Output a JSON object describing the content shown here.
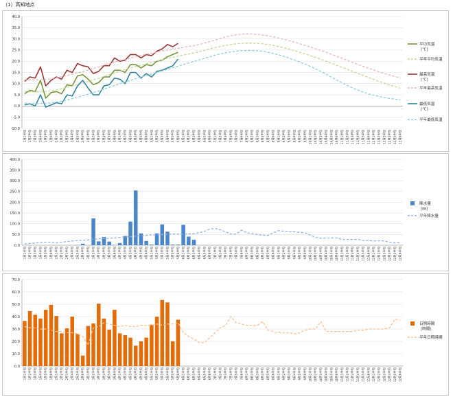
{
  "page": {
    "title": "（1）高知地点"
  },
  "x_labels": [
    "1月1半旬",
    "1月2半旬",
    "1月3半旬",
    "1月4半旬",
    "1月5半旬",
    "1月6半旬",
    "2月1半旬",
    "2月2半旬",
    "2月3半旬",
    "2月4半旬",
    "2月5半旬",
    "2月6半旬",
    "3月1半旬",
    "3月2半旬",
    "3月3半旬",
    "3月4半旬",
    "3月5半旬",
    "3月6半旬",
    "4月1半旬",
    "4月2半旬",
    "4月3半旬",
    "4月4半旬",
    "4月5半旬",
    "4月6半旬",
    "5月1半旬",
    "5月2半旬",
    "5月3半旬",
    "5月4半旬",
    "5月5半旬",
    "5月6半旬",
    "6月1半旬",
    "6月2半旬",
    "6月3半旬",
    "6月4半旬",
    "6月5半旬",
    "6月6半旬",
    "7月1半旬",
    "7月2半旬",
    "7月3半旬",
    "7月4半旬",
    "7月5半旬",
    "7月6半旬",
    "8月1半旬",
    "8月2半旬",
    "8月3半旬",
    "8月4半旬",
    "8月5半旬",
    "8月6半旬",
    "9月1半旬",
    "9月2半旬",
    "9月3半旬",
    "9月4半旬",
    "9月5半旬",
    "9月6半旬",
    "10月1半旬",
    "10月2半旬",
    "10月3半旬",
    "10月4半旬",
    "10月5半旬",
    "10月6半旬",
    "11月1半旬",
    "11月2半旬",
    "11月3半旬",
    "11月4半旬",
    "11月5半旬",
    "11月6半旬",
    "12月1半旬",
    "12月2半旬",
    "12月3半旬",
    "12月4半旬",
    "12月5半旬",
    "12月6半旬"
  ],
  "chart_data": [
    {
      "type": "line",
      "id": "temperature",
      "title": "",
      "xlabel": "",
      "ylabel": "",
      "ylim": [
        -10,
        40
      ],
      "ystep": 5,
      "grid": true,
      "legend_position": "right",
      "series": [
        {
          "name": "平均気温",
          "unit": "[℃]",
          "color": "#77933c",
          "dashed": false,
          "values": [
            5.5,
            7.0,
            6.5,
            11.5,
            3.5,
            6.0,
            6.5,
            5.5,
            9.5,
            9.0,
            13.5,
            14.0,
            12.0,
            9.5,
            10.5,
            13.0,
            13.0,
            16.0,
            16.0,
            15.0,
            18.5,
            18.5,
            17.0,
            18.5,
            18.0,
            20.0,
            20.5,
            22.0,
            23.0,
            24.0
          ]
        },
        {
          "name": "平年平均気温",
          "unit": "",
          "color": "#c3d69b",
          "dashed": true,
          "values": [
            6.5,
            6.4,
            6.3,
            6.4,
            6.6,
            6.9,
            7.3,
            7.8,
            8.3,
            8.9,
            9.6,
            10.3,
            11.0,
            11.7,
            12.4,
            13.2,
            14.0,
            14.8,
            15.6,
            16.3,
            17.0,
            17.7,
            18.3,
            18.9,
            19.5,
            20.1,
            20.7,
            21.3,
            21.8,
            22.3,
            22.8,
            23.2,
            23.7,
            24.3,
            24.9,
            25.5,
            26.1,
            26.6,
            27.1,
            27.5,
            27.8,
            28.0,
            28.1,
            28.1,
            28.0,
            27.8,
            27.5,
            27.1,
            26.6,
            26.0,
            25.4,
            24.7,
            24.0,
            23.3,
            22.5,
            21.7,
            20.9,
            20.0,
            19.1,
            18.2,
            17.3,
            16.4,
            15.5,
            14.6,
            13.7,
            12.8,
            11.9,
            11.0,
            10.2,
            9.4,
            8.7,
            8.0
          ]
        },
        {
          "name": "最高気温",
          "unit": "[℃]",
          "color": "#953735",
          "dashed": false,
          "values": [
            11.0,
            13.0,
            12.5,
            17.5,
            9.0,
            11.5,
            13.0,
            12.0,
            16.0,
            15.0,
            19.0,
            18.0,
            17.5,
            14.5,
            15.5,
            18.0,
            18.0,
            21.5,
            20.0,
            20.5,
            23.0,
            23.0,
            21.5,
            23.0,
            22.5,
            24.5,
            25.5,
            27.5,
            26.5,
            28.0
          ]
        },
        {
          "name": "平年最高気温",
          "unit": "",
          "color": "#e6b9b8",
          "dashed": true,
          "values": [
            11.8,
            11.7,
            11.6,
            11.7,
            11.9,
            12.2,
            12.6,
            13.1,
            13.6,
            14.2,
            14.8,
            15.4,
            16.1,
            16.8,
            17.5,
            18.2,
            18.9,
            19.6,
            20.3,
            20.9,
            21.5,
            22.1,
            22.6,
            23.1,
            23.6,
            24.1,
            24.6,
            25.0,
            25.4,
            25.8,
            26.2,
            26.6,
            27.0,
            27.5,
            28.1,
            28.8,
            29.5,
            30.2,
            30.9,
            31.4,
            31.8,
            32.1,
            32.2,
            32.2,
            32.0,
            31.7,
            31.4,
            30.9,
            30.4,
            29.8,
            29.2,
            28.5,
            27.8,
            27.1,
            26.4,
            25.6,
            24.8,
            24.0,
            23.1,
            22.2,
            21.3,
            20.4,
            19.5,
            18.6,
            17.7,
            16.9,
            16.1,
            15.3,
            14.5,
            13.8,
            13.2,
            12.6
          ]
        },
        {
          "name": "最低気温",
          "unit": "[℃]",
          "color": "#31859c",
          "dashed": false,
          "values": [
            0.5,
            1.0,
            0.0,
            5.0,
            -0.5,
            0.5,
            1.5,
            1.0,
            5.0,
            4.5,
            9.0,
            11.5,
            8.0,
            5.0,
            5.0,
            9.0,
            9.5,
            12.5,
            12.0,
            10.0,
            15.0,
            15.0,
            12.5,
            14.5,
            13.0,
            15.5,
            16.0,
            17.0,
            18.0,
            21.0
          ]
        },
        {
          "name": "平年最低気温",
          "unit": "",
          "color": "#93cddd",
          "dashed": true,
          "values": [
            1.3,
            1.2,
            1.1,
            1.1,
            1.2,
            1.5,
            1.8,
            2.2,
            2.7,
            3.3,
            3.9,
            4.6,
            5.3,
            6.0,
            6.8,
            7.6,
            8.4,
            9.2,
            10.0,
            10.7,
            11.5,
            12.2,
            12.9,
            13.6,
            14.3,
            15.0,
            15.7,
            16.4,
            17.1,
            17.8,
            18.5,
            19.2,
            19.9,
            20.6,
            21.3,
            22.0,
            22.7,
            23.3,
            23.8,
            24.2,
            24.5,
            24.7,
            24.8,
            24.8,
            24.7,
            24.4,
            24.0,
            23.5,
            22.9,
            22.2,
            21.4,
            20.6,
            19.7,
            18.8,
            17.7,
            16.6,
            15.4,
            14.2,
            12.9,
            11.6,
            10.4,
            9.2,
            8.1,
            7.1,
            6.2,
            5.4,
            4.8,
            4.3,
            3.8,
            3.4,
            3.1,
            2.8
          ]
        }
      ]
    },
    {
      "type": "bar",
      "id": "precipitation",
      "title": "",
      "xlabel": "",
      "ylabel": "",
      "ylim": [
        0,
        400
      ],
      "ystep": 50,
      "grid": true,
      "legend_position": "right",
      "series": [
        {
          "name": "降水量",
          "unit": "[㎜]",
          "color": "#4a86c8",
          "kind": "bar",
          "values": [
            0,
            0,
            0,
            0,
            0,
            0,
            0,
            0,
            0,
            0,
            1,
            7,
            0,
            125,
            18,
            38,
            17,
            1,
            10,
            43,
            110,
            255,
            55,
            20,
            3,
            55,
            97,
            63,
            3,
            3,
            95,
            40,
            25
          ]
        },
        {
          "name": "平年降水量",
          "unit": "",
          "color": "#8fb4e3",
          "kind": "dashed-line",
          "values": [
            6,
            8,
            10,
            13,
            14,
            14,
            12,
            14,
            17,
            20,
            22,
            23,
            25,
            28,
            30,
            31,
            32,
            34,
            36,
            38,
            40,
            42,
            44,
            46,
            48,
            49,
            50,
            51,
            52,
            52,
            52,
            53,
            55,
            58,
            65,
            75,
            78,
            72,
            62,
            52,
            52,
            70,
            58,
            55,
            50,
            47,
            45,
            58,
            68,
            65,
            62,
            62,
            60,
            57,
            47,
            36,
            33,
            33,
            34,
            34,
            26,
            27,
            27,
            27,
            22,
            22,
            20,
            21,
            20,
            14,
            12,
            11
          ]
        }
      ]
    },
    {
      "type": "bar",
      "id": "sunshine",
      "title": "",
      "xlabel": "",
      "ylabel": "",
      "ylim": [
        0,
        70
      ],
      "ystep": 10,
      "grid": true,
      "legend_position": "right",
      "series": [
        {
          "name": "日照時間",
          "unit": "[時間]",
          "color": "#e36c09",
          "kind": "bar",
          "values": [
            36.5,
            44.5,
            41.5,
            38.5,
            45.5,
            49.5,
            40.5,
            26.5,
            30.5,
            40.0,
            26.0,
            8.5,
            32.5,
            34.5,
            50.5,
            38.5,
            29.5,
            45.5,
            26.5,
            25.0,
            23.0,
            16.5,
            20.0,
            23.0,
            33.5,
            40.0,
            53.5,
            51.5,
            20.0,
            37.5
          ]
        },
        {
          "name": "平年日照時間",
          "unit": "",
          "color": "#fac090",
          "kind": "dashed-line",
          "values": [
            32,
            31,
            31,
            30,
            30,
            29,
            28,
            28,
            27,
            27,
            26,
            24,
            17,
            31,
            32,
            35,
            34,
            33,
            32,
            33,
            32,
            32,
            33,
            33,
            33,
            34,
            33,
            34,
            34,
            35,
            27,
            24,
            22,
            19,
            19,
            23,
            27,
            31,
            33,
            40,
            35,
            34,
            33,
            33,
            33,
            36,
            29,
            28,
            27,
            27,
            27,
            26,
            27,
            29,
            30,
            30,
            36,
            28,
            28,
            28,
            28,
            28,
            28,
            29,
            29,
            30,
            30,
            30,
            30,
            31,
            38,
            37
          ]
        }
      ]
    }
  ]
}
